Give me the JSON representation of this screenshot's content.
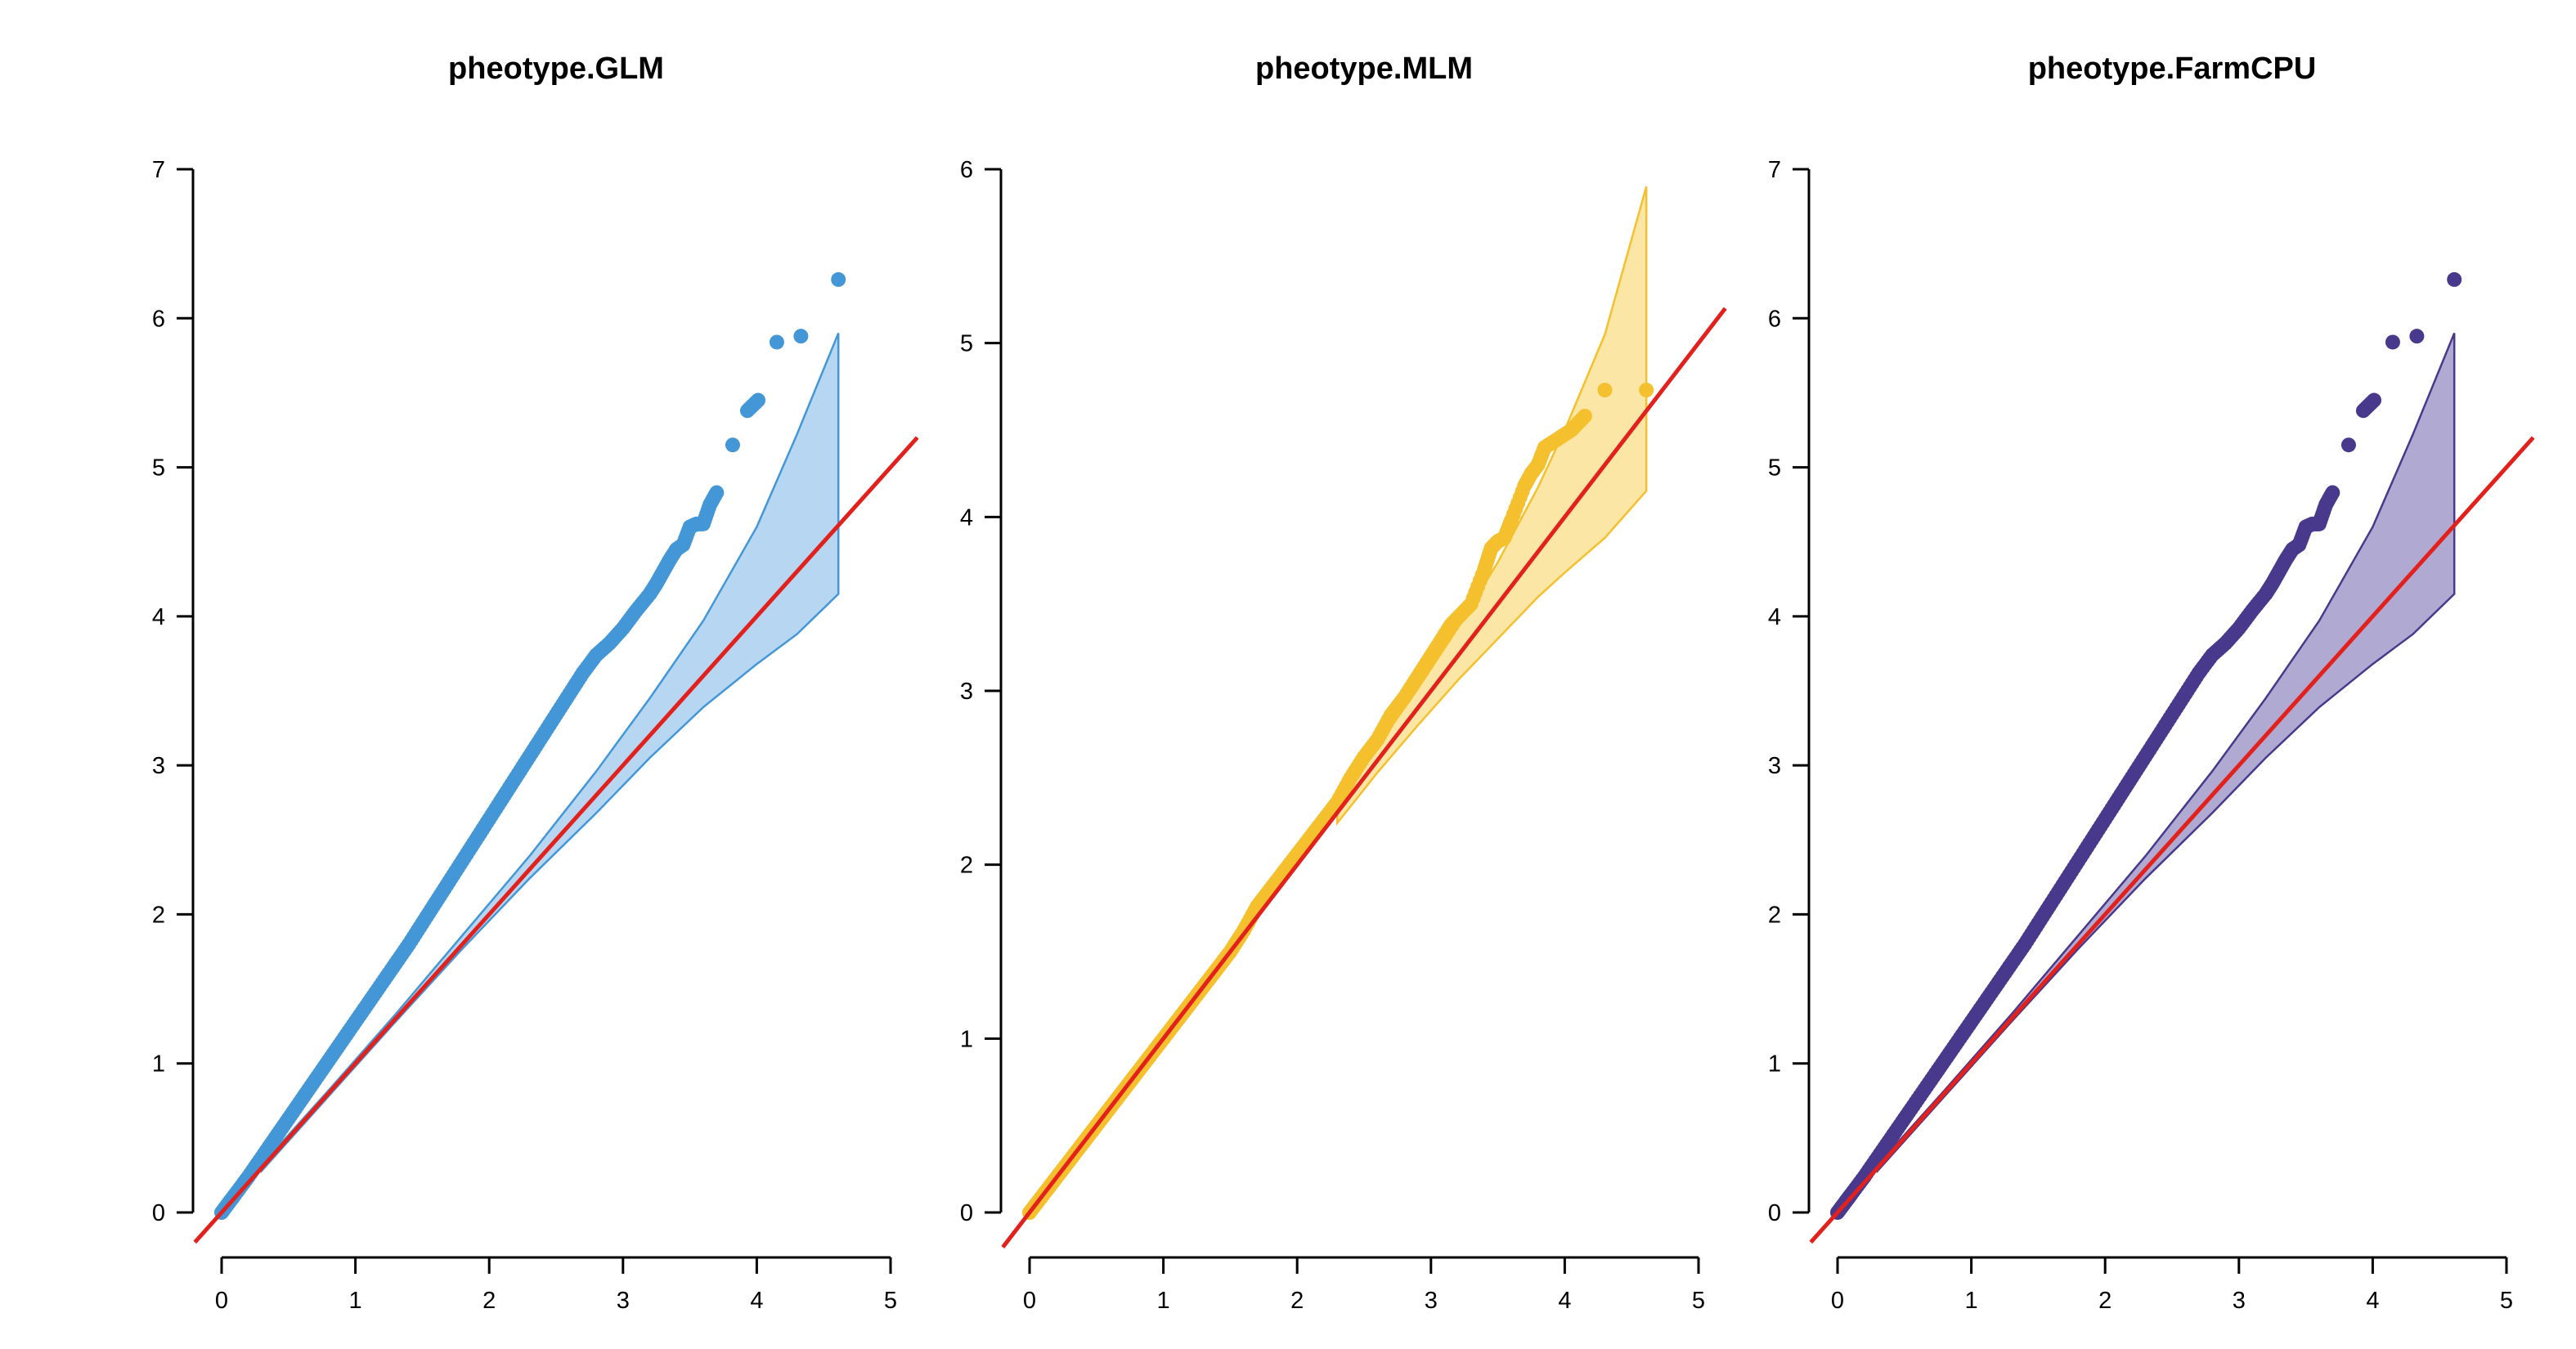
{
  "chart_data": [
    {
      "type": "scatter",
      "title": "pheotype.GLM",
      "xlabel": "",
      "ylabel": "",
      "xlim": [
        0,
        5
      ],
      "ylim": [
        0,
        7
      ],
      "xticks": [
        0,
        1,
        2,
        3,
        4,
        5
      ],
      "yticks": [
        0,
        1,
        2,
        3,
        4,
        5,
        6,
        7
      ],
      "point_color": "#4497d7",
      "band_fill": "#b6d6f2",
      "band_stroke": "#4497d7",
      "reference_line_color": "#e3211c",
      "grid": false,
      "series_points": [
        [
          0,
          0
        ],
        [
          0.05,
          0.06
        ],
        [
          0.1,
          0.12
        ],
        [
          0.2,
          0.24
        ],
        [
          0.3,
          0.37
        ],
        [
          0.4,
          0.5
        ],
        [
          0.5,
          0.63
        ],
        [
          0.6,
          0.76
        ],
        [
          0.7,
          0.89
        ],
        [
          0.8,
          1.02
        ],
        [
          0.9,
          1.15
        ],
        [
          1.0,
          1.28
        ],
        [
          1.1,
          1.41
        ],
        [
          1.2,
          1.54
        ],
        [
          1.3,
          1.67
        ],
        [
          1.4,
          1.8
        ],
        [
          1.5,
          1.94
        ],
        [
          1.6,
          2.08
        ],
        [
          1.7,
          2.22
        ],
        [
          1.8,
          2.36
        ],
        [
          1.9,
          2.5
        ],
        [
          2.0,
          2.64
        ],
        [
          2.1,
          2.78
        ],
        [
          2.2,
          2.92
        ],
        [
          2.3,
          3.06
        ],
        [
          2.4,
          3.2
        ],
        [
          2.5,
          3.34
        ],
        [
          2.6,
          3.48
        ],
        [
          2.7,
          3.62
        ],
        [
          2.8,
          3.74
        ],
        [
          2.9,
          3.82
        ],
        [
          3.0,
          3.92
        ],
        [
          3.1,
          4.04
        ],
        [
          3.2,
          4.15
        ],
        [
          3.25,
          4.22
        ],
        [
          3.3,
          4.3
        ],
        [
          3.35,
          4.38
        ],
        [
          3.4,
          4.45
        ],
        [
          3.45,
          4.48
        ],
        [
          3.5,
          4.6
        ],
        [
          3.55,
          4.62
        ],
        [
          3.6,
          4.62
        ],
        [
          3.65,
          4.75
        ],
        [
          3.7,
          4.83
        ],
        [
          3.82,
          5.15
        ],
        [
          3.93,
          5.38
        ],
        [
          4.01,
          5.45
        ],
        [
          4.15,
          5.84
        ],
        [
          4.33,
          5.88
        ],
        [
          4.61,
          6.26
        ]
      ],
      "confidence_band": {
        "x": [
          0.3,
          0.8,
          1.3,
          1.8,
          2.3,
          2.8,
          3.2,
          3.6,
          4.0,
          4.3,
          4.61
        ],
        "upper": [
          0.32,
          0.82,
          1.33,
          1.86,
          2.39,
          2.96,
          3.45,
          3.97,
          4.6,
          5.22,
          5.9
        ],
        "lower": [
          0.28,
          0.78,
          1.28,
          1.77,
          2.24,
          2.68,
          3.05,
          3.39,
          3.68,
          3.88,
          4.15
        ]
      },
      "reference_line": [
        [
          -0.2,
          -0.2
        ],
        [
          5.2,
          5.2
        ]
      ]
    },
    {
      "type": "scatter",
      "title": "pheotype.MLM",
      "xlabel": "",
      "ylabel": "",
      "xlim": [
        0,
        5
      ],
      "ylim": [
        0,
        6
      ],
      "xticks": [
        0,
        1,
        2,
        3,
        4,
        5
      ],
      "yticks": [
        0,
        1,
        2,
        3,
        4,
        5,
        6
      ],
      "point_color": "#f5c02d",
      "band_fill": "#fce6a6",
      "band_stroke": "#f5c02d",
      "reference_line_color": "#e3211c",
      "grid": false,
      "series_points": [
        [
          0,
          0
        ],
        [
          0.1,
          0.1
        ],
        [
          0.2,
          0.2
        ],
        [
          0.3,
          0.3
        ],
        [
          0.4,
          0.4
        ],
        [
          0.5,
          0.5
        ],
        [
          0.6,
          0.6
        ],
        [
          0.7,
          0.7
        ],
        [
          0.8,
          0.8
        ],
        [
          0.9,
          0.9
        ],
        [
          1.0,
          1.0
        ],
        [
          1.1,
          1.1
        ],
        [
          1.2,
          1.2
        ],
        [
          1.3,
          1.3
        ],
        [
          1.4,
          1.4
        ],
        [
          1.5,
          1.5
        ],
        [
          1.6,
          1.62
        ],
        [
          1.7,
          1.76
        ],
        [
          1.8,
          1.86
        ],
        [
          1.9,
          1.96
        ],
        [
          2.0,
          2.06
        ],
        [
          2.1,
          2.16
        ],
        [
          2.2,
          2.26
        ],
        [
          2.3,
          2.36
        ],
        [
          2.4,
          2.5
        ],
        [
          2.5,
          2.62
        ],
        [
          2.6,
          2.72
        ],
        [
          2.7,
          2.86
        ],
        [
          2.8,
          2.96
        ],
        [
          2.9,
          3.08
        ],
        [
          3.0,
          3.2
        ],
        [
          3.1,
          3.32
        ],
        [
          3.15,
          3.38
        ],
        [
          3.2,
          3.42
        ],
        [
          3.3,
          3.5
        ],
        [
          3.4,
          3.7
        ],
        [
          3.45,
          3.82
        ],
        [
          3.5,
          3.86
        ],
        [
          3.55,
          3.88
        ],
        [
          3.6,
          3.98
        ],
        [
          3.7,
          4.18
        ],
        [
          3.75,
          4.25
        ],
        [
          3.8,
          4.3
        ],
        [
          3.85,
          4.4
        ],
        [
          3.95,
          4.45
        ],
        [
          4.05,
          4.5
        ],
        [
          4.15,
          4.58
        ],
        [
          4.3,
          4.73
        ],
        [
          4.61,
          4.73
        ]
      ],
      "confidence_band": {
        "x": [
          2.3,
          2.6,
          2.9,
          3.2,
          3.5,
          3.8,
          4.0,
          4.3,
          4.61
        ],
        "upper": [
          2.36,
          2.68,
          3.01,
          3.36,
          3.74,
          4.17,
          4.5,
          5.05,
          5.9
        ],
        "lower": [
          2.24,
          2.53,
          2.8,
          3.06,
          3.3,
          3.54,
          3.68,
          3.88,
          4.15
        ]
      },
      "reference_line": [
        [
          -0.2,
          -0.2
        ],
        [
          5.2,
          5.2
        ]
      ]
    },
    {
      "type": "scatter",
      "title": "pheotype.FarmCPU",
      "xlabel": "",
      "ylabel": "",
      "xlim": [
        0,
        5
      ],
      "ylim": [
        0,
        7
      ],
      "xticks": [
        0,
        1,
        2,
        3,
        4,
        5
      ],
      "yticks": [
        0,
        1,
        2,
        3,
        4,
        5,
        6,
        7
      ],
      "point_color": "#49398c",
      "band_fill": "#b0aad3",
      "band_stroke": "#49398c",
      "reference_line_color": "#e3211c",
      "grid": false,
      "series_points": [
        [
          0,
          0
        ],
        [
          0.05,
          0.06
        ],
        [
          0.1,
          0.12
        ],
        [
          0.2,
          0.24
        ],
        [
          0.3,
          0.37
        ],
        [
          0.4,
          0.5
        ],
        [
          0.5,
          0.63
        ],
        [
          0.6,
          0.76
        ],
        [
          0.7,
          0.89
        ],
        [
          0.8,
          1.02
        ],
        [
          0.9,
          1.15
        ],
        [
          1.0,
          1.28
        ],
        [
          1.1,
          1.41
        ],
        [
          1.2,
          1.54
        ],
        [
          1.3,
          1.67
        ],
        [
          1.4,
          1.8
        ],
        [
          1.5,
          1.94
        ],
        [
          1.6,
          2.08
        ],
        [
          1.7,
          2.22
        ],
        [
          1.8,
          2.36
        ],
        [
          1.9,
          2.5
        ],
        [
          2.0,
          2.64
        ],
        [
          2.1,
          2.78
        ],
        [
          2.2,
          2.92
        ],
        [
          2.3,
          3.06
        ],
        [
          2.4,
          3.2
        ],
        [
          2.5,
          3.34
        ],
        [
          2.6,
          3.48
        ],
        [
          2.7,
          3.62
        ],
        [
          2.8,
          3.74
        ],
        [
          2.9,
          3.82
        ],
        [
          3.0,
          3.92
        ],
        [
          3.1,
          4.04
        ],
        [
          3.2,
          4.15
        ],
        [
          3.25,
          4.22
        ],
        [
          3.3,
          4.3
        ],
        [
          3.35,
          4.38
        ],
        [
          3.4,
          4.45
        ],
        [
          3.45,
          4.48
        ],
        [
          3.5,
          4.6
        ],
        [
          3.55,
          4.62
        ],
        [
          3.6,
          4.62
        ],
        [
          3.65,
          4.75
        ],
        [
          3.7,
          4.83
        ],
        [
          3.82,
          5.15
        ],
        [
          3.93,
          5.38
        ],
        [
          4.01,
          5.45
        ],
        [
          4.15,
          5.84
        ],
        [
          4.33,
          5.88
        ],
        [
          4.61,
          6.26
        ]
      ],
      "confidence_band": {
        "x": [
          0.3,
          0.8,
          1.3,
          1.8,
          2.3,
          2.8,
          3.2,
          3.6,
          4.0,
          4.3,
          4.61
        ],
        "upper": [
          0.32,
          0.82,
          1.33,
          1.86,
          2.39,
          2.96,
          3.45,
          3.97,
          4.6,
          5.22,
          5.9
        ],
        "lower": [
          0.28,
          0.78,
          1.28,
          1.77,
          2.24,
          2.68,
          3.05,
          3.39,
          3.68,
          3.88,
          4.15
        ]
      },
      "reference_line": [
        [
          -0.2,
          -0.2
        ],
        [
          5.2,
          5.2
        ]
      ]
    }
  ]
}
